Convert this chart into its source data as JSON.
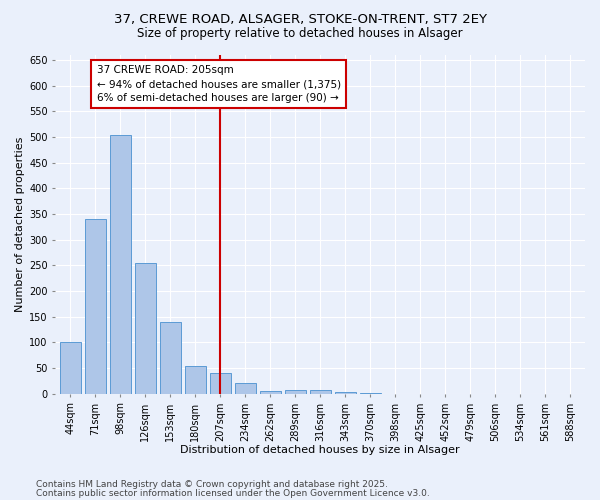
{
  "title1": "37, CREWE ROAD, ALSAGER, STOKE-ON-TRENT, ST7 2EY",
  "title2": "Size of property relative to detached houses in Alsager",
  "xlabel": "Distribution of detached houses by size in Alsager",
  "ylabel": "Number of detached properties",
  "categories": [
    "44sqm",
    "71sqm",
    "98sqm",
    "126sqm",
    "153sqm",
    "180sqm",
    "207sqm",
    "234sqm",
    "262sqm",
    "289sqm",
    "316sqm",
    "343sqm",
    "370sqm",
    "398sqm",
    "425sqm",
    "452sqm",
    "479sqm",
    "506sqm",
    "534sqm",
    "561sqm",
    "588sqm"
  ],
  "values": [
    100,
    340,
    505,
    255,
    140,
    55,
    40,
    22,
    5,
    8,
    8,
    3,
    1,
    0,
    0,
    0,
    0,
    0,
    0,
    0,
    0
  ],
  "bar_color": "#aec6e8",
  "bar_edge_color": "#5b9bd5",
  "vline_index": 6,
  "annotation_title": "37 CREWE ROAD: 205sqm",
  "annotation_line1": "← 94% of detached houses are smaller (1,375)",
  "annotation_line2": "6% of semi-detached houses are larger (90) →",
  "annotation_box_color": "#ffffff",
  "annotation_box_edge_color": "#cc0000",
  "vline_color": "#cc0000",
  "ylim": [
    0,
    660
  ],
  "yticks": [
    0,
    50,
    100,
    150,
    200,
    250,
    300,
    350,
    400,
    450,
    500,
    550,
    600,
    650
  ],
  "footnote1": "Contains HM Land Registry data © Crown copyright and database right 2025.",
  "footnote2": "Contains public sector information licensed under the Open Government Licence v3.0.",
  "background_color": "#eaf0fb",
  "grid_color": "#ffffff",
  "title_fontsize": 9.5,
  "subtitle_fontsize": 8.5,
  "axis_label_fontsize": 8,
  "tick_fontsize": 7,
  "annotation_fontsize": 7.5,
  "footnote_fontsize": 6.5
}
